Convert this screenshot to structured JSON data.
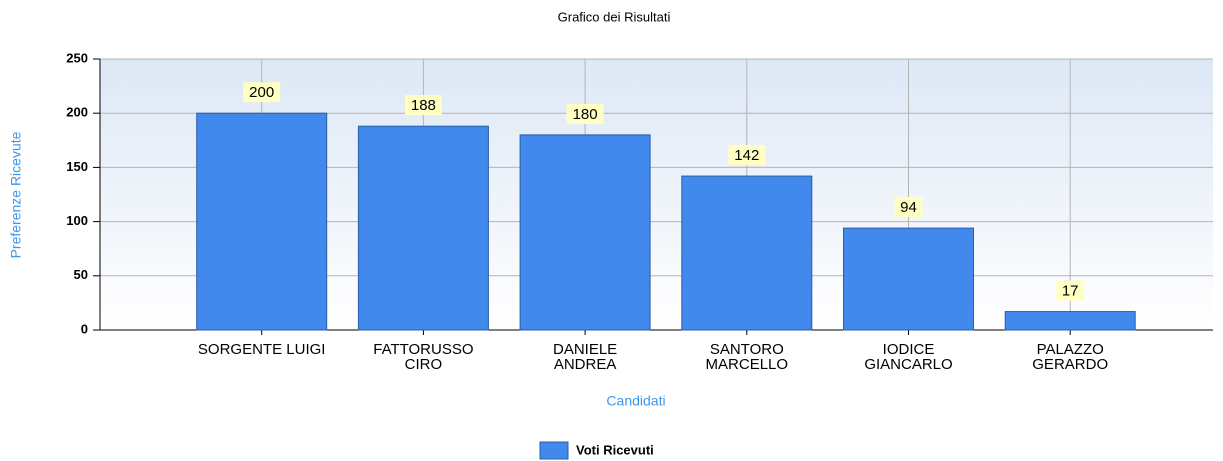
{
  "chart_data": {
    "type": "bar",
    "title": "Grafico dei Risultati",
    "x_label": "Candidati",
    "y_label": "Preferenze Ricevute",
    "categories": [
      "SORGENTE LUIGI",
      "FATTORUSSO\nCIRO",
      "DANIELE\nANDREA",
      "SANTORO\nMARCELLO",
      "IODICE\nGIANCARLO",
      "PALAZZO\nGERARDO"
    ],
    "series": [
      {
        "name": "Voti Ricevuti",
        "color": "#4189ec",
        "values": [
          200,
          188,
          180,
          142,
          94,
          17
        ]
      }
    ],
    "ylim": [
      0,
      250
    ],
    "yticks": [
      0,
      50,
      100,
      150,
      200,
      250
    ],
    "grid": true,
    "legend": "bottom"
  }
}
